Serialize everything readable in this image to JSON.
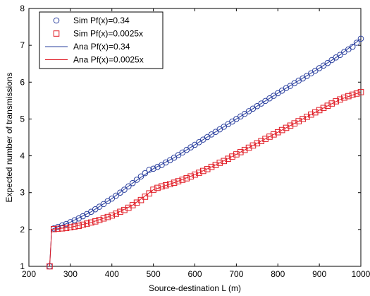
{
  "chart_data": {
    "type": "line",
    "xlabel": "Source-destination L (m)",
    "ylabel": "Expected number of transmissions",
    "xlim": [
      200,
      1000
    ],
    "ylim": [
      1,
      8
    ],
    "xticks": [
      200,
      300,
      400,
      500,
      600,
      700,
      800,
      900,
      1000
    ],
    "yticks": [
      1,
      2,
      3,
      4,
      5,
      6,
      7,
      8
    ],
    "grid": false,
    "legend_position": "top-left",
    "series": [
      {
        "name": "Sim Pf(x)=0.34",
        "style": "marker",
        "marker": "circle",
        "color": "#2a3f9e",
        "x": [
          250,
          260,
          270,
          280,
          290,
          300,
          310,
          320,
          330,
          340,
          350,
          360,
          370,
          380,
          390,
          400,
          410,
          420,
          430,
          440,
          450,
          460,
          470,
          480,
          490,
          500,
          510,
          520,
          530,
          540,
          550,
          560,
          570,
          580,
          590,
          600,
          610,
          620,
          630,
          640,
          650,
          660,
          670,
          680,
          690,
          700,
          710,
          720,
          730,
          740,
          750,
          760,
          770,
          780,
          790,
          800,
          810,
          820,
          830,
          840,
          850,
          860,
          870,
          880,
          890,
          900,
          910,
          920,
          930,
          940,
          950,
          960,
          970,
          980,
          990,
          1000
        ],
        "y": [
          1.0,
          2.03,
          2.07,
          2.11,
          2.15,
          2.2,
          2.25,
          2.3,
          2.36,
          2.42,
          2.48,
          2.55,
          2.62,
          2.69,
          2.77,
          2.84,
          2.92,
          3.0,
          3.08,
          3.17,
          3.26,
          3.35,
          3.44,
          3.53,
          3.62,
          3.65,
          3.7,
          3.75,
          3.82,
          3.88,
          3.95,
          4.02,
          4.09,
          4.16,
          4.23,
          4.3,
          4.37,
          4.44,
          4.51,
          4.58,
          4.65,
          4.72,
          4.79,
          4.86,
          4.93,
          5.0,
          5.07,
          5.14,
          5.21,
          5.28,
          5.35,
          5.42,
          5.49,
          5.56,
          5.63,
          5.7,
          5.77,
          5.84,
          5.9,
          5.97,
          6.04,
          6.1,
          6.17,
          6.24,
          6.31,
          6.38,
          6.45,
          6.52,
          6.6,
          6.67,
          6.74,
          6.82,
          6.89,
          6.96,
          7.07,
          7.18
        ]
      },
      {
        "name": "Sim Pf(x)=0.0025x",
        "style": "marker",
        "marker": "square",
        "color": "#e01b24",
        "x": [
          250,
          260,
          270,
          280,
          290,
          300,
          310,
          320,
          330,
          340,
          350,
          360,
          370,
          380,
          390,
          400,
          410,
          420,
          430,
          440,
          450,
          460,
          470,
          480,
          490,
          500,
          510,
          520,
          530,
          540,
          550,
          560,
          570,
          580,
          590,
          600,
          610,
          620,
          630,
          640,
          650,
          660,
          670,
          680,
          690,
          700,
          710,
          720,
          730,
          740,
          750,
          760,
          770,
          780,
          790,
          800,
          810,
          820,
          830,
          840,
          850,
          860,
          870,
          880,
          890,
          900,
          910,
          920,
          930,
          940,
          950,
          960,
          970,
          980,
          990,
          1000
        ],
        "y": [
          1.0,
          2.01,
          2.02,
          2.03,
          2.04,
          2.06,
          2.08,
          2.1,
          2.13,
          2.16,
          2.19,
          2.22,
          2.26,
          2.3,
          2.34,
          2.38,
          2.43,
          2.48,
          2.53,
          2.59,
          2.66,
          2.73,
          2.8,
          2.89,
          2.98,
          3.08,
          3.13,
          3.17,
          3.2,
          3.23,
          3.27,
          3.31,
          3.35,
          3.39,
          3.44,
          3.49,
          3.54,
          3.59,
          3.64,
          3.7,
          3.75,
          3.81,
          3.86,
          3.92,
          3.98,
          4.04,
          4.1,
          4.16,
          4.22,
          4.28,
          4.34,
          4.4,
          4.46,
          4.52,
          4.58,
          4.64,
          4.7,
          4.76,
          4.82,
          4.88,
          4.94,
          5.0,
          5.06,
          5.12,
          5.18,
          5.24,
          5.3,
          5.36,
          5.42,
          5.48,
          5.53,
          5.58,
          5.62,
          5.66,
          5.69,
          5.73
        ]
      },
      {
        "name": "Ana Pf(x)=0.34",
        "style": "line",
        "color": "#2a3f9e",
        "x": [
          250,
          255,
          260,
          300,
          350,
          400,
          450,
          500,
          550,
          600,
          650,
          700,
          750,
          800,
          850,
          900,
          950,
          1000
        ],
        "y": [
          1.0,
          2.0,
          2.03,
          2.2,
          2.48,
          2.84,
          3.26,
          3.65,
          3.95,
          4.3,
          4.65,
          5.0,
          5.35,
          5.7,
          6.04,
          6.38,
          6.74,
          7.18
        ]
      },
      {
        "name": "Ana Pf(x)=0.0025x",
        "style": "line",
        "color": "#e01b24",
        "x": [
          250,
          255,
          260,
          300,
          350,
          400,
          450,
          500,
          550,
          600,
          650,
          700,
          750,
          800,
          850,
          900,
          950,
          1000
        ],
        "y": [
          1.0,
          2.0,
          2.01,
          2.06,
          2.19,
          2.38,
          2.66,
          3.08,
          3.27,
          3.49,
          3.75,
          4.04,
          4.34,
          4.64,
          4.94,
          5.24,
          5.53,
          5.73
        ]
      }
    ]
  }
}
